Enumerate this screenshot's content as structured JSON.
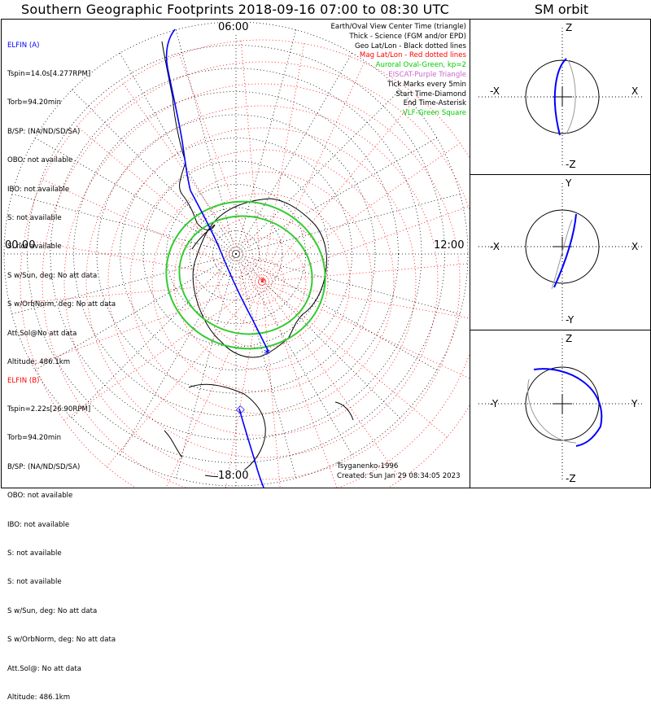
{
  "title": "Southern Geographic Footprints 2018-09-16 07:00 to 08:30 UTC",
  "sm_title": "SM orbit",
  "chart_data": [
    {
      "type": "polar-map",
      "clock_labels": {
        "top": "06:00",
        "left": "00:00",
        "right": "12:00",
        "bottom": "18:00"
      },
      "spacecraft_a": {
        "name": "ELFIN (A)",
        "color": "#0000ff",
        "lines": [
          "Tspin=14.0s[4.277RPM]",
          "Torb=94.20min",
          "B/SP: (NA/ND/SD/SA)",
          "OBO: not available",
          "IBO: not available",
          "S: not available",
          "S: not available",
          "S w/Sun, deg: No att data",
          "S w/OrbNorm, deg: No att data",
          "Att.Sol@No att data",
          "Altitude: 486.1km"
        ]
      },
      "spacecraft_b": {
        "name": "ELFIN (B)",
        "color": "#ff0000",
        "lines": [
          "Tspin=2.22s[26.90RPM]",
          "Torb=94.20min",
          "B/SP: (NA/ND/SD/SA)",
          "OBO: not available",
          "IBO: not available",
          "S: not available",
          "S: not available",
          "S w/Sun, deg: No att data",
          "S w/OrbNorm, deg: No att data",
          "Att.Sol@: No att data",
          "Altitude: 486.1km"
        ]
      },
      "legend": [
        {
          "text": "Earth/Oval View Center Time (triangle)",
          "color": "#000000"
        },
        {
          "text": "Thick - Science (FGM and/or EPD)",
          "color": "#000000"
        },
        {
          "text": "Geo Lat/Lon - Black dotted lines",
          "color": "#000000"
        },
        {
          "text": "Mag Lat/Lon - Red dotted lines",
          "color": "#ff0000"
        },
        {
          "text": "Auroral Oval-Green, kp=2",
          "color": "#00cc00"
        },
        {
          "text": "EISCAT-Purple Triangle",
          "color": "#cc66cc"
        },
        {
          "text": "Tick Marks every 5min",
          "color": "#000000"
        },
        {
          "text": "Start Time-Diamond",
          "color": "#000000"
        },
        {
          "text": "End Time-Asterisk",
          "color": "#000000"
        },
        {
          "text": "VLF-Green Square",
          "color": "#00cc00"
        }
      ],
      "footer_model": "Tsyganenko-1996",
      "footer_created": "Created: Sun Jan 29 08:34:05 2023",
      "colors": {
        "track": "#0000ff",
        "oval": "#33cc33",
        "mag_grid": "#ff0000",
        "geo_grid": "#000000"
      }
    },
    {
      "type": "orbit-projections",
      "panels": [
        {
          "top": "Z",
          "bottom": "-Z",
          "left": "-X",
          "right": "X"
        },
        {
          "top": "Y",
          "bottom": "-Y",
          "left": "-X",
          "right": "X"
        },
        {
          "top": "Z",
          "bottom": "-Z",
          "left": "-Y",
          "right": "Y"
        }
      ]
    }
  ]
}
